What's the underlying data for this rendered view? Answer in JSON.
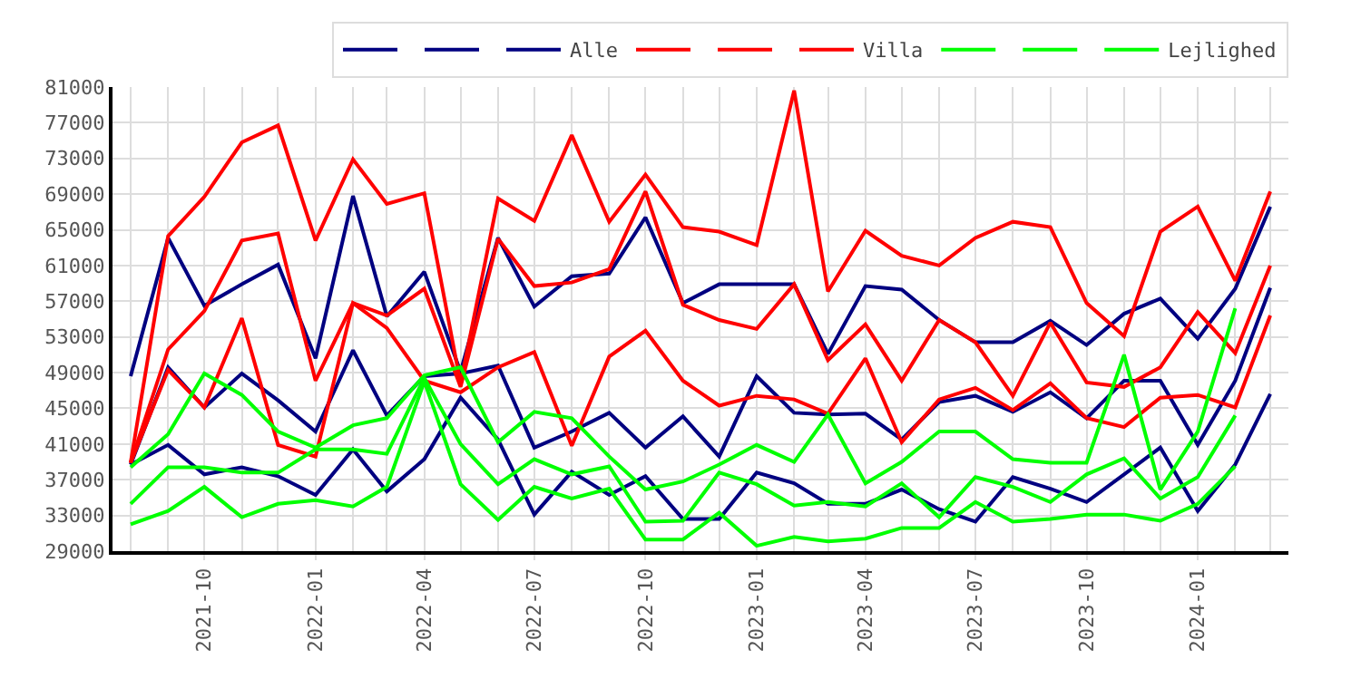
{
  "chart_data": {
    "type": "line",
    "x": [
      "2021-08",
      "2021-09",
      "2021-10",
      "2021-11",
      "2021-12",
      "2022-01",
      "2022-02",
      "2022-03",
      "2022-04",
      "2022-05",
      "2022-06",
      "2022-07",
      "2022-08",
      "2022-09",
      "2022-10",
      "2022-11",
      "2022-12",
      "2023-01",
      "2023-02",
      "2023-03",
      "2023-04",
      "2023-05",
      "2023-06",
      "2023-07",
      "2023-08",
      "2023-09",
      "2023-10",
      "2023-11",
      "2023-12",
      "2024-01",
      "2024-02",
      "2024-03"
    ],
    "series": [
      {
        "color": "#000080",
        "values": [
          48600,
          64100,
          56500,
          58900,
          61100,
          50600,
          68800,
          55300,
          60300,
          49100,
          64100,
          56400,
          59800,
          60100,
          66400,
          56800,
          58900,
          58900,
          58900,
          51100,
          58700,
          58300,
          54900,
          52400,
          52400,
          54800,
          52100,
          55600,
          57300,
          52800,
          58400,
          67600
        ]
      },
      {
        "color": "#000080",
        "values": [
          38700,
          49600,
          45100,
          48900,
          45900,
          42400,
          51500,
          44200,
          48600,
          48900,
          49800,
          40600,
          42400,
          44500,
          40600,
          44100,
          39600,
          48600,
          44500,
          44300,
          44400,
          41500,
          45700,
          46400,
          44600,
          46800,
          43900,
          48100,
          48100,
          40900,
          48100,
          58500
        ]
      },
      {
        "name": "Alle",
        "color": "#000080",
        "values": [
          38700,
          40900,
          37600,
          38400,
          37400,
          35300,
          40400,
          35700,
          39300,
          46200,
          41500,
          33100,
          37900,
          35300,
          37400,
          32600,
          32600,
          37800,
          36600,
          34300,
          34300,
          35900,
          33700,
          32300,
          37300,
          36000,
          34500,
          37600,
          40600,
          33500,
          38700,
          46600
        ]
      },
      {
        "color": "#ff0000",
        "values": [
          38900,
          64300,
          68700,
          74800,
          76700,
          63800,
          72900,
          67900,
          69100,
          47800,
          68500,
          66000,
          75600,
          65900,
          71200,
          65300,
          64800,
          63300,
          80600,
          58100,
          64900,
          62100,
          61000,
          64100,
          65900,
          65300,
          56800,
          53100,
          64800,
          67600,
          59300,
          69300
        ]
      },
      {
        "color": "#ff0000",
        "values": [
          38900,
          51600,
          55900,
          63800,
          64600,
          48100,
          56800,
          55400,
          58400,
          47400,
          64000,
          58700,
          59100,
          60600,
          69300,
          56600,
          54900,
          53900,
          58900,
          50400,
          54400,
          48100,
          54900,
          52400,
          46400,
          54600,
          47900,
          47400,
          49600,
          55800,
          51200,
          61000
        ]
      },
      {
        "name": "Villa",
        "color": "#ff0000",
        "values": [
          38900,
          49300,
          45100,
          55100,
          40900,
          39600,
          56800,
          54000,
          48100,
          46800,
          49600,
          51300,
          40800,
          50800,
          53700,
          48100,
          45300,
          46400,
          46000,
          44400,
          50600,
          41200,
          46000,
          47300,
          44800,
          47800,
          43900,
          42900,
          46200,
          46500,
          45100,
          55400
        ]
      },
      {
        "color": "#00ff00",
        "values": [
          38400,
          42100,
          48900,
          46500,
          42400,
          40600,
          43100,
          43900,
          48700,
          49600,
          41200,
          44600,
          43900,
          39600,
          35900,
          36800,
          38700,
          40900,
          39000,
          44300,
          36600,
          39000,
          42400,
          42400,
          39300,
          38900,
          38900,
          51000,
          35900,
          42400,
          56200,
          null
        ]
      },
      {
        "color": "#00ff00",
        "values": [
          34300,
          38400,
          38400,
          37800,
          37800,
          40400,
          40400,
          39900,
          48400,
          41000,
          36500,
          39300,
          37600,
          38500,
          32300,
          32400,
          37800,
          36500,
          34100,
          34500,
          34000,
          36600,
          32800,
          37300,
          36200,
          34500,
          37600,
          39400,
          34900,
          37300,
          44200,
          null
        ]
      },
      {
        "name": "Lejlighed",
        "color": "#00ff00",
        "values": [
          32000,
          33500,
          36200,
          32800,
          34300,
          34700,
          34000,
          36200,
          48000,
          36500,
          32500,
          36200,
          34900,
          36000,
          30300,
          30300,
          33300,
          29600,
          30600,
          30100,
          30400,
          31600,
          31600,
          34500,
          32300,
          32600,
          33100,
          33100,
          32400,
          34300,
          38500,
          null
        ]
      }
    ],
    "xlim": [
      "2021-07-17",
      "2024-03-16"
    ],
    "xticks": [
      {
        "value": "2021-10",
        "label": "2021-10"
      },
      {
        "value": "2022-01",
        "label": "2022-01"
      },
      {
        "value": "2022-04",
        "label": "2022-04"
      },
      {
        "value": "2022-07",
        "label": "2022-07"
      },
      {
        "value": "2022-10",
        "label": "2022-10"
      },
      {
        "value": "2023-01",
        "label": "2023-01"
      },
      {
        "value": "2023-04",
        "label": "2023-04"
      },
      {
        "value": "2023-07",
        "label": "2023-07"
      },
      {
        "value": "2023-10",
        "label": "2023-10"
      },
      {
        "value": "2024-01",
        "label": "2024-01"
      }
    ],
    "ylim": [
      29000,
      81000
    ],
    "yticks": [
      29000,
      33000,
      37000,
      41000,
      45000,
      49000,
      53000,
      57000,
      61000,
      65000,
      69000,
      73000,
      77000,
      81000
    ],
    "grid": true,
    "legend": "top right",
    "marker": "none",
    "line_style": "solid"
  }
}
